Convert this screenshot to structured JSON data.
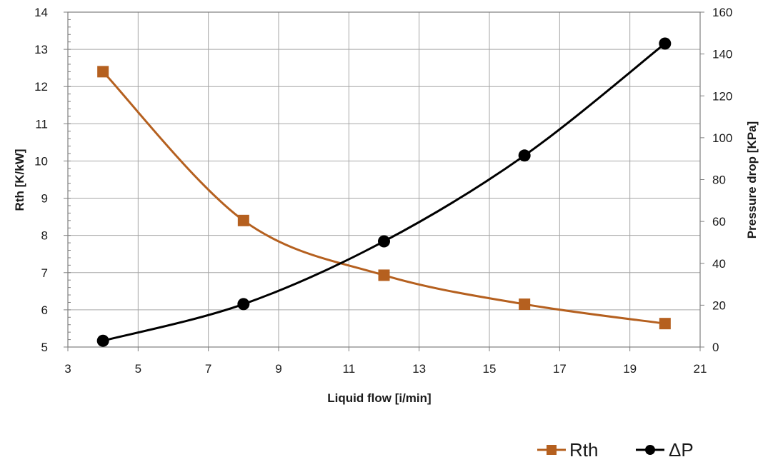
{
  "chart_data": {
    "type": "line",
    "title": "",
    "xlabel": "Liquid flow [i/min]",
    "ylabel_left": "Rth [K/kW]",
    "ylabel_right": "Pressure drop [KPa]",
    "xlim": [
      3,
      21
    ],
    "ylim_left": [
      5,
      14
    ],
    "ylim_right": [
      0,
      160
    ],
    "x_ticks": [
      3,
      5,
      7,
      9,
      11,
      13,
      15,
      17,
      19,
      21
    ],
    "y_left_ticks": [
      5,
      6,
      7,
      8,
      9,
      10,
      11,
      12,
      13,
      14
    ],
    "y_right_ticks": [
      0,
      20,
      40,
      60,
      80,
      100,
      120,
      140,
      160
    ],
    "grid": true,
    "legend_position": "bottom-right",
    "series": [
      {
        "name": "Rth",
        "axis": "left",
        "marker": "square",
        "color": "#b5601f",
        "x": [
          4,
          8,
          12,
          16,
          20
        ],
        "y": [
          12.4,
          8.4,
          6.93,
          6.15,
          5.63
        ]
      },
      {
        "name": "ΔP",
        "axis": "right",
        "marker": "circle",
        "color": "#000000",
        "x": [
          4,
          8,
          12,
          16,
          20
        ],
        "y": [
          3,
          20.5,
          50.5,
          91.5,
          145
        ]
      }
    ]
  }
}
